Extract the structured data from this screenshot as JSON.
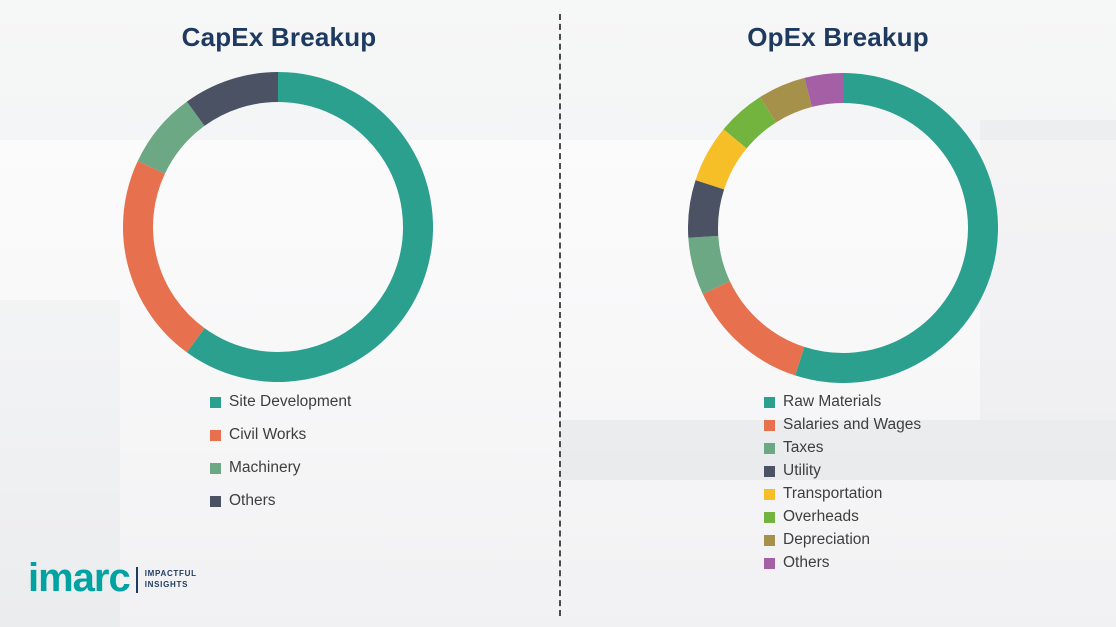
{
  "chart_data": [
    {
      "type": "pie",
      "subtype": "donut",
      "title": "CapEx Breakup",
      "labels": [
        "Site Development",
        "Civil Works",
        "Machinery",
        "Others"
      ],
      "values": [
        60,
        22,
        8,
        10
      ],
      "colors": [
        "#2BA08E",
        "#E7704E",
        "#6BA883",
        "#4A5264"
      ],
      "start_angle": "top",
      "direction": "clockwise",
      "legend_position": "bottom",
      "grid": false
    },
    {
      "type": "pie",
      "subtype": "donut",
      "title": "OpEx Breakup",
      "labels": [
        "Raw Materials",
        "Salaries and Wages",
        "Taxes",
        "Utility",
        "Transportation",
        "Overheads",
        "Depreciation",
        "Others"
      ],
      "values": [
        55,
        13,
        6,
        6,
        6,
        5,
        5,
        4
      ],
      "colors": [
        "#2BA08E",
        "#E7704E",
        "#6BA883",
        "#4A5264",
        "#F6BE27",
        "#73B43E",
        "#A6914B",
        "#A560A5"
      ],
      "start_angle": "top",
      "direction": "clockwise",
      "legend_position": "bottom",
      "grid": false
    }
  ],
  "divider": {
    "style": "vertical-dashed"
  },
  "logo": {
    "brand": "imarc",
    "tagline_line1": "IMPACTFUL",
    "tagline_line2": "INSIGHTS"
  }
}
